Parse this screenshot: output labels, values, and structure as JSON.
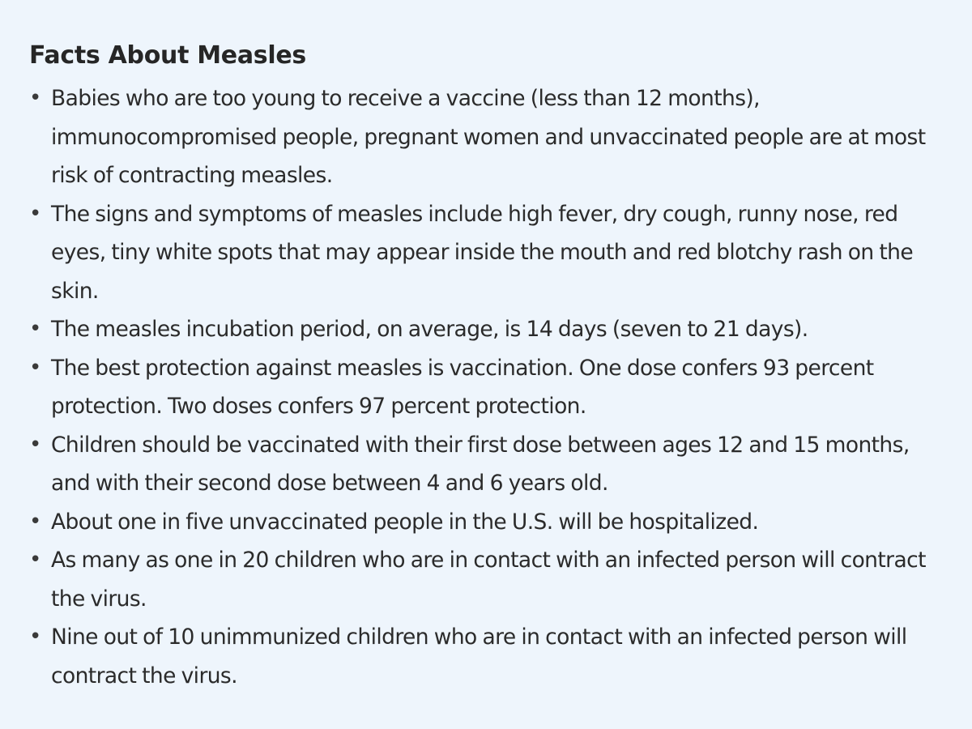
{
  "document": {
    "title": "Facts About Measles",
    "facts": [
      {
        "bullet": "•",
        "text": "Babies who are too young to receive a vaccine (less than 12 months), immunocompromised people, pregnant women and unvaccinated people are at most risk of contracting measles."
      },
      {
        "bullet": "•",
        "text": "The signs and symptoms of measles include high fever, dry cough, runny nose, red eyes, tiny white spots that may appear inside the mouth and red blotchy rash on the skin."
      },
      {
        "bullet": "•",
        "text": "The measles incubation period, on average, is 14 days (seven to 21 days)."
      },
      {
        "bullet": "•",
        "text": "The best protection against measles is vaccination. One dose confers 93 percent protection. Two doses confers 97 percent protection."
      },
      {
        "bullet": "•",
        "text": "Children should be vaccinated with their first dose between ages 12 and 15 months, and with their second dose between 4 and 6 years old."
      },
      {
        "bullet": "•",
        "text": "About one in five unvaccinated people in the U.S. will be hospitalized."
      },
      {
        "bullet": "•",
        "text": "As many as one in 20 children who are in contact with an infected person will contract the virus."
      },
      {
        "bullet": "•",
        "text": "Nine out of 10 unimmunized children who are in contact with an infected person will contract the virus."
      }
    ]
  },
  "colors": {
    "background": "#eef5fc",
    "text": "#2b2b2b"
  }
}
